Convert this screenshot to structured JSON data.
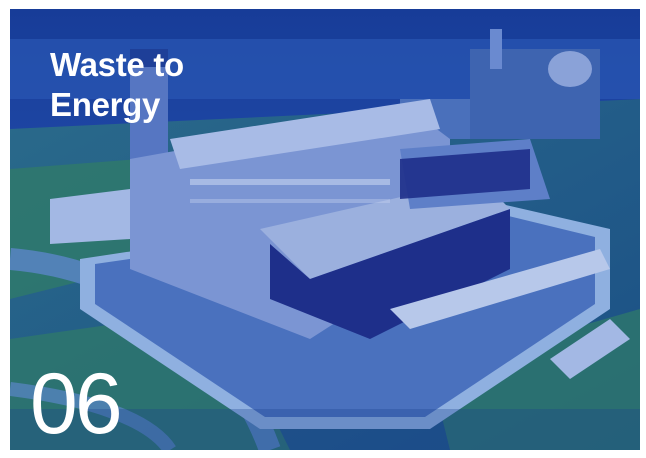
{
  "card": {
    "title_line1": "Waste to",
    "title_line2": "Energy",
    "number": "06",
    "overlay_color": "#1d4aa8",
    "image_subject": "aerial-photo-waste-to-energy-plant"
  }
}
